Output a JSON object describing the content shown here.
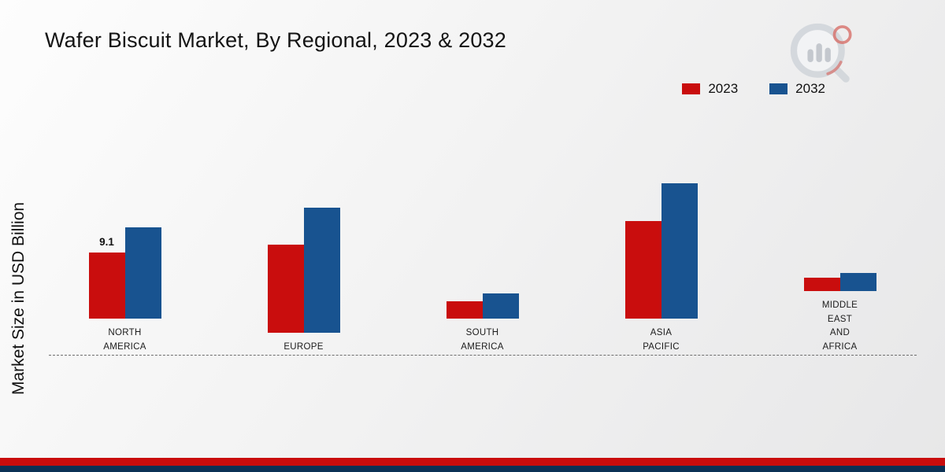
{
  "page": {
    "title": "Wafer Biscuit Market, By Regional, 2023 & 2032",
    "ylabel": "Market Size in USD Billion"
  },
  "legend": [
    {
      "label": "2023",
      "color": "#c90d0d"
    },
    {
      "label": "2032",
      "color": "#185390"
    }
  ],
  "chart_data": {
    "type": "bar",
    "title": "Wafer Biscuit Market, By Regional, 2023 & 2032",
    "xlabel": "",
    "ylabel": "Market Size in USD Billion",
    "categories": [
      "NORTH AMERICA",
      "EUROPE",
      "SOUTH AMERICA",
      "ASIA PACIFIC",
      "MIDDLE EAST AND AFRICA"
    ],
    "category_label_lines": [
      [
        "NORTH",
        "AMERICA"
      ],
      [
        "EUROPE"
      ],
      [
        "SOUTH",
        "AMERICA"
      ],
      [
        "ASIA",
        "PACIFIC"
      ],
      [
        "MIDDLE",
        "EAST",
        "AND",
        "AFRICA"
      ]
    ],
    "series": [
      {
        "name": "2023",
        "color": "#c90d0d",
        "values": [
          9.1,
          12.1,
          2.4,
          13.5,
          1.8
        ]
      },
      {
        "name": "2032",
        "color": "#185390",
        "values": [
          12.6,
          17.2,
          3.5,
          18.6,
          2.5
        ]
      }
    ],
    "ylim": [
      0,
      20
    ],
    "grid": false,
    "legend_position": "top-right",
    "bar_labels": [
      {
        "series": "2023",
        "category": "NORTH AMERICA",
        "text": "9.1"
      }
    ]
  },
  "footer": {
    "red_band_color": "#c90d0d",
    "navy_band_color": "#0b3155"
  }
}
